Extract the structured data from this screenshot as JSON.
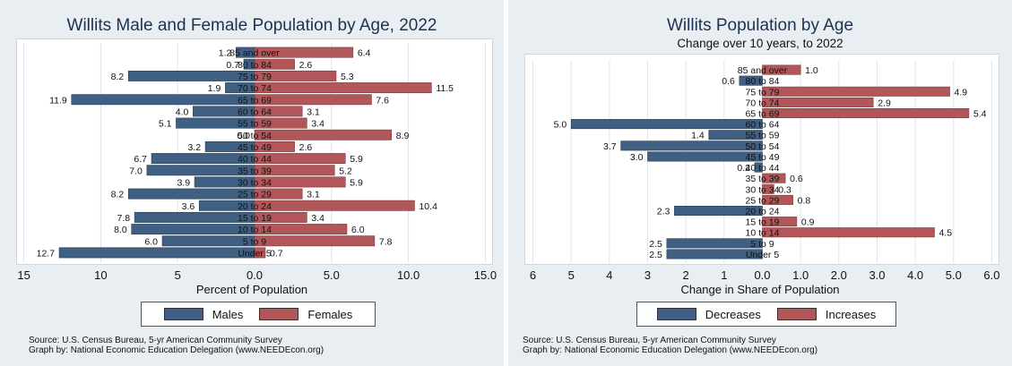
{
  "colors": {
    "males": "#3f5f83",
    "females": "#b1575a",
    "grid": "#dfe4ea",
    "panel_bg": "#e9eef3"
  },
  "left": {
    "title": "Willits Male and Female Population by Age, 2022",
    "xlabel": "Percent of Population",
    "legend": {
      "males": "Males",
      "females": "Females"
    },
    "source_line1": "Source:  U.S. Census Bureau, 5-yr American Community Survey",
    "source_line2": "Graph by: National Economic Education Delegation (www.NEEDEcon.org)"
  },
  "right": {
    "title": "Willits Population by Age",
    "subtitle": "Change over 10 years, to 2022",
    "xlabel": "Change in Share of Population",
    "legend": {
      "decreases": "Decreases",
      "increases": "Increases"
    },
    "source_line1": "Source:  U.S. Census Bureau, 5-yr American Community Survey",
    "source_line2": "Graph by: National Economic Education Delegation (www.NEEDEcon.org)"
  },
  "chart_data": [
    {
      "type": "bar",
      "orientation": "horizontal-pyramid",
      "title": "Willits Male and Female Population by Age, 2022",
      "xlabel": "Percent of Population",
      "categories": [
        "85 and over",
        "80 to 84",
        "75 to 79",
        "70 to 74",
        "65 to 69",
        "60 to 64",
        "55 to 59",
        "50 to 54",
        "45 to 49",
        "40 to 44",
        "35 to 39",
        "30 to 34",
        "25 to 29",
        "20 to 24",
        "15 to 19",
        "10 to 14",
        "5 to 9",
        "Under 5"
      ],
      "series": [
        {
          "name": "Males",
          "values": [
            1.2,
            0.7,
            8.2,
            1.9,
            11.9,
            4.0,
            5.1,
            0.0,
            3.2,
            6.7,
            7.0,
            3.9,
            8.2,
            3.6,
            7.8,
            8.0,
            6.0,
            12.7
          ]
        },
        {
          "name": "Females",
          "values": [
            6.4,
            2.6,
            5.3,
            11.5,
            7.6,
            3.1,
            3.4,
            8.9,
            2.6,
            5.9,
            5.2,
            5.9,
            3.1,
            10.4,
            3.4,
            6.0,
            7.8,
            0.7
          ]
        }
      ],
      "bar_labels": {
        "Males": [
          "1.2",
          "0.7",
          "8.2",
          "1.9",
          "11.9",
          "4.0",
          "5.1",
          "0.0",
          "3.2",
          "6.7",
          "7.0",
          "3.9",
          "8.2",
          "3.6",
          "7.8",
          "8.0",
          "6.0",
          "12.7"
        ],
        "Females": [
          "6.4",
          "2.6",
          "5.3",
          "11.5",
          "7.6",
          "3.1",
          "3.4",
          "8.9",
          "2.6",
          "5.9",
          "5.2",
          "5.9",
          "3.1",
          "10.4",
          "3.4",
          "6.0",
          "7.8",
          "0.7"
        ]
      },
      "xticks": [
        "15",
        "10",
        "5",
        "0.0",
        "5.0",
        "10.0",
        "15.0"
      ],
      "xtick_values": [
        -15,
        -10,
        -5,
        0,
        5,
        10,
        15
      ],
      "xlim": [
        -15.5,
        15.5
      ],
      "grid": true,
      "legend_position": "bottom"
    },
    {
      "type": "bar",
      "orientation": "horizontal-diverging",
      "title": "Willits Population by Age",
      "subtitle": "Change over 10 years, to 2022",
      "xlabel": "Change in Share of Population",
      "categories": [
        "85 and over",
        "80 to 84",
        "75 to 79",
        "70 to 74",
        "65 to 69",
        "60 to 64",
        "55 to 59",
        "50 to 54",
        "45 to 49",
        "40 to 44",
        "35 to 39",
        "30 to 34",
        "25 to 29",
        "20 to 24",
        "15 to 19",
        "10 to 14",
        "5 to 9",
        "Under 5"
      ],
      "series": [
        {
          "name": "Decreases",
          "values": [
            null,
            -0.6,
            null,
            null,
            null,
            -5.0,
            -1.4,
            -3.7,
            -3.0,
            -0.2,
            null,
            null,
            null,
            -2.3,
            null,
            null,
            -2.5,
            -2.5
          ]
        },
        {
          "name": "Increases",
          "values": [
            1.0,
            null,
            4.9,
            2.9,
            5.4,
            null,
            null,
            null,
            null,
            null,
            0.6,
            0.3,
            0.8,
            null,
            0.9,
            4.5,
            null,
            null
          ]
        }
      ],
      "bar_labels": {
        "Decreases": [
          "",
          "0.6",
          "",
          "",
          "",
          "5.0",
          "1.4",
          "3.7",
          "3.0",
          "0.2",
          "",
          "",
          "",
          "2.3",
          "",
          "",
          "2.5",
          "2.5"
        ],
        "Increases": [
          "1.0",
          "",
          "4.9",
          "2.9",
          "5.4",
          "",
          "",
          "",
          "",
          "",
          "0.6",
          "0.3",
          "0.8",
          "",
          "0.9",
          "4.5",
          "",
          ""
        ]
      },
      "xticks": [
        "6",
        "5",
        "4",
        "3",
        "2",
        "1",
        "0.0",
        "1.0",
        "2.0",
        "3.0",
        "4.0",
        "5.0",
        "6.0"
      ],
      "xtick_values": [
        -6,
        -5,
        -4,
        -3,
        -2,
        -1,
        0,
        1,
        2,
        3,
        4,
        5,
        6
      ],
      "xlim": [
        -6.2,
        6.2
      ],
      "grid": true,
      "legend_position": "bottom"
    }
  ]
}
